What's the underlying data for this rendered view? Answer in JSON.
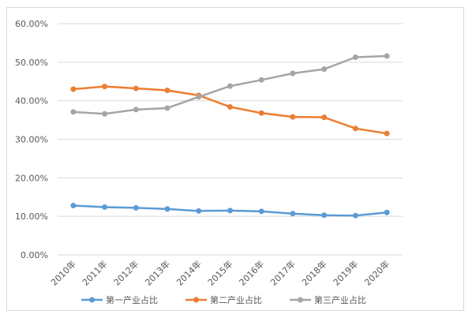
{
  "chart_data": {
    "type": "line",
    "categories": [
      "2010年",
      "2011年",
      "2012年",
      "2013年",
      "2014年",
      "2015年",
      "2016年",
      "2017年",
      "2018年",
      "2019年",
      "2020年"
    ],
    "ylim": [
      0,
      60
    ],
    "yticks": [
      0,
      10,
      20,
      30,
      40,
      50,
      60
    ],
    "ytick_labels": [
      "0.00%",
      "10.00%",
      "20.00%",
      "30.00%",
      "40.00%",
      "50.00%",
      "60.00%"
    ],
    "grid": true,
    "legend_position": "bottom",
    "series": [
      {
        "name": "第一产业占比",
        "color": "#5b9bd5",
        "values": [
          12.8,
          12.4,
          12.2,
          11.9,
          11.4,
          11.5,
          11.3,
          10.7,
          10.3,
          10.2,
          11.0
        ]
      },
      {
        "name": "第二产业占比",
        "color": "#ed7d31",
        "values": [
          43.0,
          43.7,
          43.2,
          42.7,
          41.4,
          38.4,
          36.8,
          35.8,
          35.7,
          32.8,
          31.5
        ]
      },
      {
        "name": "第三产业占比",
        "color": "#a5a5a5",
        "values": [
          37.1,
          36.6,
          37.7,
          38.1,
          41.0,
          43.8,
          45.4,
          47.1,
          48.2,
          51.3,
          51.6
        ]
      }
    ]
  }
}
